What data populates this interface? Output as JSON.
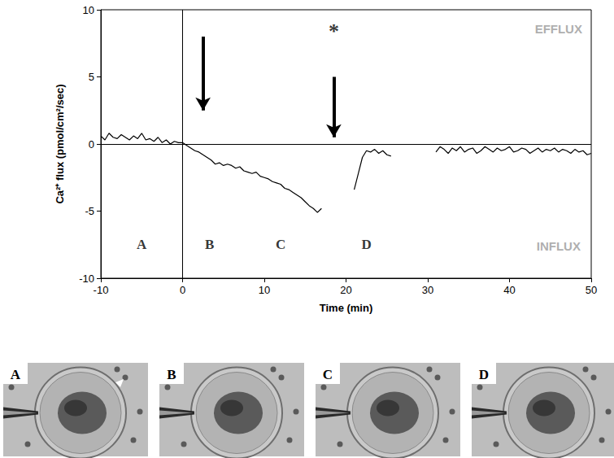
{
  "chart_data": {
    "type": "line",
    "x_label": "Time (min)",
    "y_label": "Ca²⁺ flux (pmol/cm²/sec)",
    "x": [
      -10,
      -9.5,
      -9,
      -8.5,
      -8,
      -7.5,
      -7,
      -6.5,
      -6,
      -5.5,
      -5,
      -4.5,
      -4,
      -3.5,
      -3,
      -2.5,
      -2,
      -1.5,
      -1,
      -0.5,
      0,
      0.5,
      1,
      1.5,
      2,
      2.5,
      3,
      3.5,
      4,
      4.5,
      5,
      5.5,
      6,
      6.5,
      7,
      7.5,
      8,
      8.5,
      9,
      9.5,
      10,
      10.5,
      11,
      11.5,
      12,
      12.5,
      13,
      13.5,
      14,
      14.5,
      15,
      15.5,
      16,
      16.5,
      17,
      17.5,
      18,
      18.5,
      19,
      19.5,
      20,
      20.5,
      21,
      21.5,
      22,
      22.5,
      23,
      23.5,
      24,
      24.5,
      25,
      25.5,
      26,
      26.5,
      27,
      27.5,
      28,
      28.5,
      29,
      29.5,
      30,
      30.5,
      31,
      31.5,
      32,
      32.5,
      33,
      33.5,
      34,
      34.5,
      35,
      35.5,
      36,
      36.5,
      37,
      37.5,
      38,
      38.5,
      39,
      39.5,
      40,
      40.5,
      41,
      41.5,
      42,
      42.5,
      43,
      43.5,
      44,
      44.5,
      45,
      45.5,
      46,
      46.5,
      47,
      47.5,
      48,
      48.5,
      49,
      49.5,
      50
    ],
    "values": [
      0.6,
      0.3,
      0.8,
      0.5,
      0.4,
      0.7,
      0.5,
      0.3,
      0.6,
      0.4,
      0.8,
      0.3,
      0.4,
      0.2,
      0.5,
      0.1,
      0.3,
      0.0,
      0.2,
      0.1,
      0.1,
      -0.1,
      -0.3,
      -0.5,
      -0.6,
      -0.8,
      -1.0,
      -1.2,
      -1.5,
      -1.4,
      -1.6,
      -1.5,
      -1.6,
      -1.8,
      -1.7,
      -2.0,
      -2.1,
      -2.2,
      -2.1,
      -2.4,
      -2.5,
      -2.6,
      -2.8,
      -2.9,
      -3.0,
      -3.3,
      -3.4,
      -3.6,
      -3.8,
      -4.0,
      -4.3,
      -4.6,
      -4.8,
      -5.1,
      -4.8,
      null,
      null,
      null,
      null,
      null,
      null,
      null,
      -3.4,
      -2.2,
      -1.0,
      -0.5,
      -0.6,
      -0.4,
      -0.7,
      -0.5,
      -0.8,
      -0.9,
      null,
      null,
      null,
      null,
      null,
      null,
      null,
      null,
      null,
      null,
      -0.6,
      -0.2,
      -0.4,
      -0.7,
      -0.3,
      -0.5,
      -0.2,
      -0.6,
      -0.4,
      -0.3,
      -0.7,
      -0.5,
      -0.2,
      -0.4,
      -0.6,
      -0.3,
      -0.5,
      -0.4,
      -0.2,
      -0.6,
      -0.5,
      -0.3,
      -0.4,
      -0.7,
      -0.5,
      -0.3,
      -0.6,
      -0.4,
      -0.5,
      -0.3,
      -0.6,
      -0.4,
      -0.5,
      -0.7,
      -0.4,
      -0.6,
      -0.5,
      -0.8,
      -0.7
    ],
    "color": "#000000",
    "xlim": [
      -10,
      50
    ],
    "xticks": [
      -10,
      0,
      10,
      20,
      30,
      40,
      50
    ],
    "ylim": [
      -10,
      10
    ],
    "yticks": [
      -10,
      -5,
      0,
      5,
      10
    ],
    "grid": false,
    "reference_lines": [
      {
        "axis": "x",
        "value": 0
      },
      {
        "axis": "y",
        "value": 0
      }
    ],
    "arrows": [
      {
        "x": 2.5,
        "y_from": 8,
        "y_to": 2.5
      },
      {
        "x": 18.5,
        "y_from": 5,
        "y_to": 0.5
      }
    ],
    "annotations": [
      {
        "text": "A",
        "x": -5,
        "y": -7.5
      },
      {
        "text": "B",
        "x": 3.3,
        "y": -7.5
      },
      {
        "text": "C",
        "x": 12,
        "y": -7.5
      },
      {
        "text": "D",
        "x": 22.5,
        "y": -7.5
      },
      {
        "text": "*",
        "x": 18.5,
        "y": 8.4
      },
      {
        "text": "EFFLUX",
        "x": 46,
        "y": 8.6,
        "color": "#999999"
      },
      {
        "text": "INFLUX",
        "x": 46,
        "y": -7.6,
        "color": "#999999"
      }
    ]
  },
  "panels": [
    {
      "label": "A"
    },
    {
      "label": "B"
    },
    {
      "label": "C"
    },
    {
      "label": "D"
    }
  ]
}
